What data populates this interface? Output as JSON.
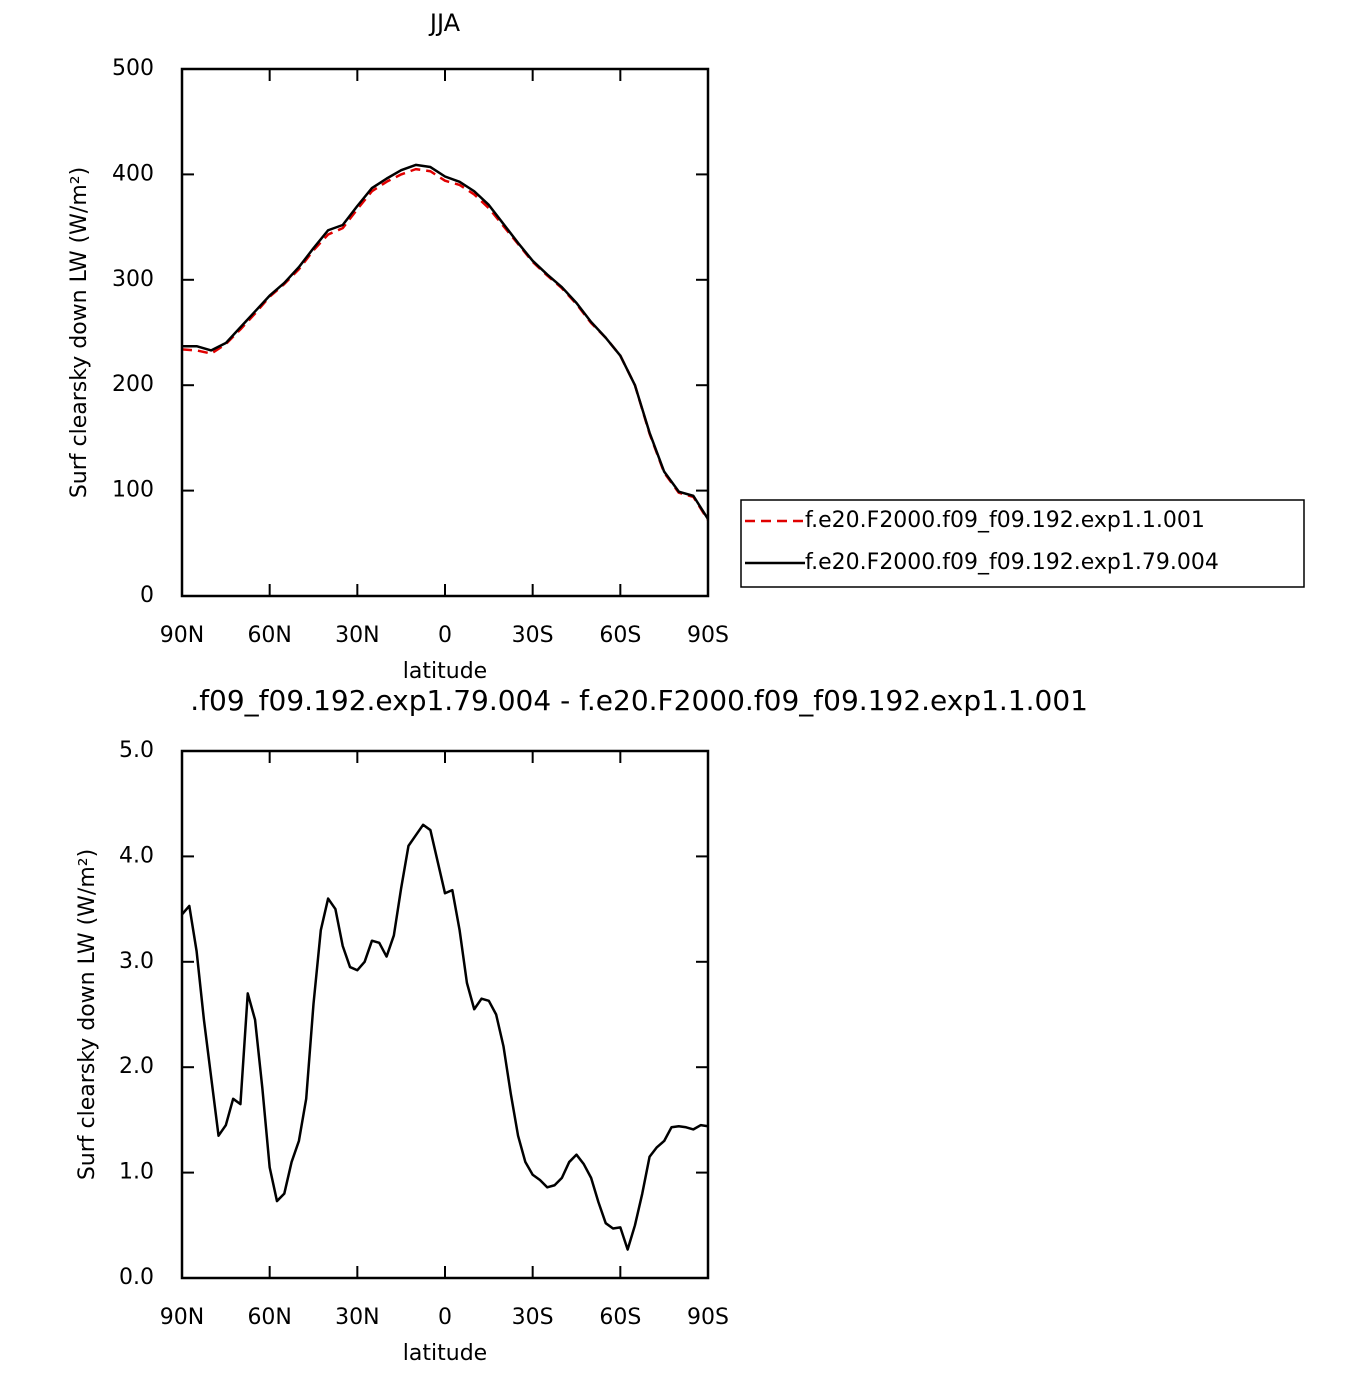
{
  "chart_data": [
    {
      "type": "line",
      "title": "JJA",
      "xlabel": "latitude",
      "ylabel": "Surf clearsky down LW (W/m²)",
      "x": [
        90,
        85,
        80,
        75,
        70,
        65,
        60,
        55,
        50,
        45,
        40,
        35,
        30,
        25,
        20,
        15,
        10,
        5,
        0,
        -5,
        -10,
        -15,
        -20,
        -25,
        -30,
        -35,
        -40,
        -45,
        -50,
        -55,
        -60,
        -65,
        -70,
        -75,
        -80,
        -85,
        -90
      ],
      "series": [
        {
          "name": "f.e20.F2000.f09_f09.192.exp1.1.001",
          "color": "#e00000",
          "style": "dashed",
          "values": [
            234,
            233,
            230,
            239,
            253,
            268,
            284,
            296,
            310,
            328,
            343,
            349,
            367,
            384,
            393,
            400,
            405,
            403,
            394,
            390,
            381,
            368,
            351,
            334,
            317,
            304,
            292,
            277,
            259,
            245,
            228,
            200,
            154,
            117,
            98,
            94,
            72
          ]
        },
        {
          "name": "f.e20.F2000.f09_f09.192.exp1.79.004",
          "color": "#000000",
          "style": "solid",
          "values": [
            237,
            237,
            233,
            240,
            255,
            270,
            285,
            297,
            312,
            330,
            347,
            352,
            370,
            387,
            396,
            404,
            409,
            407,
            398,
            393,
            384,
            371,
            353,
            335,
            318,
            305,
            293,
            278,
            260,
            245,
            228,
            200,
            155,
            118,
            99,
            95,
            73
          ]
        }
      ],
      "xlim": [
        90,
        -90
      ],
      "xticks": [
        {
          "value": 90,
          "label": "90N"
        },
        {
          "value": 60,
          "label": "60N"
        },
        {
          "value": 30,
          "label": "30N"
        },
        0,
        {
          "value": -30,
          "label": "30S"
        },
        {
          "value": -60,
          "label": "60S"
        },
        {
          "value": -90,
          "label": "90S"
        }
      ],
      "ylim": [
        0,
        500
      ],
      "yticks": [
        0,
        100,
        200,
        300,
        400,
        500
      ],
      "legend": "right"
    },
    {
      "type": "line",
      "title": ".f09_f09.192.exp1.79.004 - f.e20.F2000.f09_f09.192.exp1.1.001",
      "xlabel": "latitude",
      "ylabel": "Surf clearsky down LW (W/m²)",
      "x": [
        90,
        87.5,
        85,
        82.5,
        80,
        77.5,
        75,
        72.5,
        70,
        67.5,
        65,
        62.5,
        60,
        57.5,
        55,
        52.5,
        50,
        47.5,
        45,
        42.5,
        40,
        37.5,
        35,
        32.5,
        30,
        27.5,
        25,
        22.5,
        20,
        17.5,
        15,
        12.5,
        10,
        7.5,
        5,
        2.5,
        0,
        -2.5,
        -5,
        -7.5,
        -10,
        -12.5,
        -15,
        -17.5,
        -20,
        -22.5,
        -25,
        -27.5,
        -30,
        -32.5,
        -35,
        -37.5,
        -40,
        -42.5,
        -45,
        -47.5,
        -50,
        -52.5,
        -55,
        -57.5,
        -60,
        -62.5,
        -65,
        -67.5,
        -70,
        -72.5,
        -75,
        -77.5,
        -80,
        -82.5,
        -85,
        -87.5,
        -90
      ],
      "values": [
        3.45,
        3.53,
        3.1,
        2.45,
        1.9,
        1.35,
        1.45,
        1.7,
        1.65,
        2.7,
        2.45,
        1.8,
        1.05,
        0.73,
        0.8,
        1.1,
        1.3,
        1.7,
        2.6,
        3.3,
        3.6,
        3.5,
        3.15,
        2.95,
        2.92,
        3.0,
        3.2,
        3.18,
        3.05,
        3.25,
        3.7,
        4.1,
        4.2,
        4.3,
        4.25,
        3.95,
        3.65,
        3.68,
        3.3,
        2.8,
        2.55,
        2.65,
        2.63,
        2.5,
        2.2,
        1.75,
        1.35,
        1.1,
        0.98,
        0.93,
        0.86,
        0.88,
        0.95,
        1.1,
        1.17,
        1.08,
        0.95,
        0.72,
        0.52,
        0.47,
        0.48,
        0.27,
        0.5,
        0.8,
        1.15,
        1.24,
        1.3,
        1.43,
        1.44,
        1.43,
        1.41,
        1.45,
        1.44
      ],
      "color": "#000000",
      "xlim": [
        90,
        -90
      ],
      "xticks": [
        {
          "value": 90,
          "label": "90N"
        },
        {
          "value": 60,
          "label": "60N"
        },
        {
          "value": 30,
          "label": "30N"
        },
        0,
        {
          "value": -30,
          "label": "30S"
        },
        {
          "value": -60,
          "label": "60S"
        },
        {
          "value": -90,
          "label": "90S"
        }
      ],
      "ylim": [
        0,
        5
      ],
      "yticks": [
        {
          "value": 0,
          "label": "0.0"
        },
        {
          "value": 1,
          "label": "1.0"
        },
        {
          "value": 2,
          "label": "2.0"
        },
        {
          "value": 3,
          "label": "3.0"
        },
        {
          "value": 4,
          "label": "4.0"
        },
        {
          "value": 5,
          "label": "5.0"
        }
      ]
    }
  ]
}
